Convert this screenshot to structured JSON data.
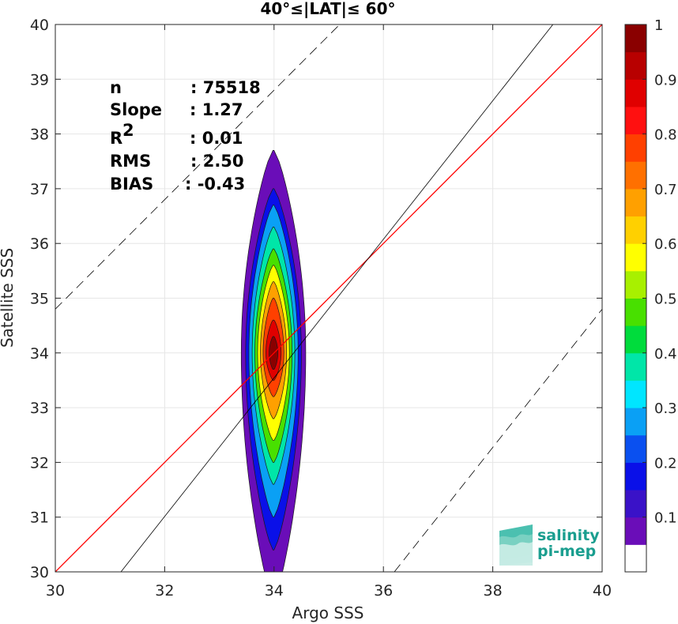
{
  "chart_data": {
    "type": "heatmap",
    "title": "40°≤|LAT|≤ 60°",
    "xlabel": "Argo SSS",
    "ylabel": "Satellite SSS",
    "xlim": [
      30,
      40
    ],
    "ylim": [
      30,
      40
    ],
    "xticks": [
      "30",
      "32",
      "34",
      "36",
      "38",
      "40"
    ],
    "yticks": [
      "30",
      "31",
      "32",
      "33",
      "34",
      "35",
      "36",
      "37",
      "38",
      "39",
      "40"
    ],
    "grid": true,
    "stats": [
      {
        "label": "n",
        "value": ": 75518"
      },
      {
        "label": "Slope",
        "value": ": 1.27"
      },
      {
        "label": "R",
        "sup": "2",
        "value": ": 0.01"
      },
      {
        "label": "RMS",
        "value": ": 2.50"
      },
      {
        "label": "BIAS",
        "value": ": -0.43"
      }
    ],
    "lines": [
      {
        "name": "identity",
        "color": "#ff0000",
        "style": "solid",
        "points": [
          [
            30,
            30
          ],
          [
            40,
            40
          ]
        ]
      },
      {
        "name": "regression",
        "color": "#000000",
        "style": "solid",
        "points": [
          [
            31.2,
            30
          ],
          [
            39.1,
            40
          ]
        ]
      },
      {
        "name": "upper-bound",
        "color": "#000000",
        "style": "dashed",
        "points": [
          [
            30,
            34.8
          ],
          [
            40,
            44.8
          ]
        ]
      },
      {
        "name": "lower-bound",
        "color": "#000000",
        "style": "dashed",
        "points": [
          [
            36.2,
            30
          ],
          [
            40,
            34.8
          ]
        ]
      }
    ],
    "density": {
      "center_x": 34.0,
      "peak_y": 34.0,
      "levels": [
        {
          "level": 0.05,
          "x_halfwidth": 0.58,
          "y_min": 29.5,
          "y_max": 37.7
        },
        {
          "level": 0.15,
          "x_halfwidth": 0.5,
          "y_min": 30.4,
          "y_max": 37.0
        },
        {
          "level": 0.25,
          "x_halfwidth": 0.44,
          "y_min": 31.0,
          "y_max": 36.7
        },
        {
          "level": 0.35,
          "x_halfwidth": 0.38,
          "y_min": 31.6,
          "y_max": 36.3
        },
        {
          "level": 0.45,
          "x_halfwidth": 0.33,
          "y_min": 32.0,
          "y_max": 35.9
        },
        {
          "level": 0.55,
          "x_halfwidth": 0.28,
          "y_min": 32.4,
          "y_max": 35.6
        },
        {
          "level": 0.65,
          "x_halfwidth": 0.23,
          "y_min": 32.8,
          "y_max": 35.3
        },
        {
          "level": 0.75,
          "x_halfwidth": 0.18,
          "y_min": 33.2,
          "y_max": 35.0
        },
        {
          "level": 0.85,
          "x_halfwidth": 0.13,
          "y_min": 33.5,
          "y_max": 34.6
        },
        {
          "level": 0.95,
          "x_halfwidth": 0.07,
          "y_min": 33.7,
          "y_max": 34.3
        }
      ]
    },
    "colorbar": {
      "range": [
        0,
        1
      ],
      "ticks": [
        "0.1",
        "0.2",
        "0.3",
        "0.4",
        "0.5",
        "0.6",
        "0.7",
        "0.8",
        "0.9",
        "1"
      ],
      "colors": [
        "#ffffff",
        "#6a0db8",
        "#3a12c8",
        "#0a10e8",
        "#0a50f0",
        "#0aa0f5",
        "#00e6ff",
        "#00e6a8",
        "#00dc3c",
        "#48e000",
        "#a8f000",
        "#ffff00",
        "#ffd000",
        "#ffa000",
        "#ff7000",
        "#ff4000",
        "#ff1010",
        "#e00000",
        "#b80000",
        "#8a0000"
      ]
    }
  },
  "logo": {
    "line1": "salinity",
    "line2": "pi-mep"
  }
}
